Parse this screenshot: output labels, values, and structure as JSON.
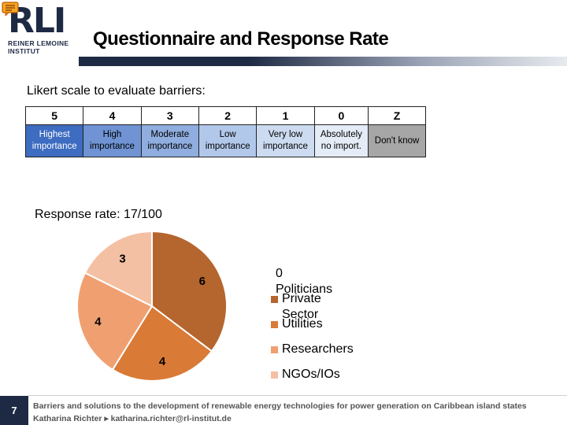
{
  "header": {
    "logo_letters": "RLI",
    "logo_name_line1": "REINER LEMOINE",
    "logo_name_line2": "INSTITUT",
    "title": "Questionnaire and Response Rate"
  },
  "likert": {
    "heading": "Likert scale to evaluate barriers:",
    "columns": [
      {
        "num": "5",
        "line1": "Highest",
        "line2": "importance"
      },
      {
        "num": "4",
        "line1": "High",
        "line2": "importance"
      },
      {
        "num": "3",
        "line1": "Moderate",
        "line2": "importance"
      },
      {
        "num": "2",
        "line1": "Low",
        "line2": "importance"
      },
      {
        "num": "1",
        "line1": "Very low",
        "line2": "importance"
      },
      {
        "num": "0",
        "line1": "Absolutely",
        "line2": "no import."
      },
      {
        "num": "Z",
        "line1": "Don't know",
        "line2": ""
      }
    ]
  },
  "response": {
    "label": "Response rate: 17/100"
  },
  "chart_data": {
    "type": "pie",
    "categories": [
      "Politicians",
      "Private Sector",
      "Utilities",
      "Researchers",
      "NGOs/IOs"
    ],
    "values": [
      0,
      6,
      4,
      4,
      3
    ],
    "colors": [
      "#8a3f15",
      "#b5652e",
      "#d97a36",
      "#f0a070",
      "#f4c0a4"
    ],
    "legend_labels": [
      "0 Politicians",
      "Private Sector",
      "Utilities",
      "Researchers",
      "NGOs/IOs"
    ],
    "legend_position": "right"
  },
  "footer": {
    "page_number": "7",
    "line1": "Barriers and solutions to the development of renewable energy technologies for power generation on Caribbean island states",
    "line2": "Katharina Richter ▸ katharina.richter@rl-institut.de"
  }
}
